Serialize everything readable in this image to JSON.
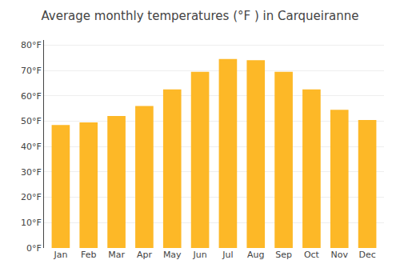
{
  "chart_data": {
    "type": "bar",
    "title": "Average monthly temperatures (°F ) in Carqueiranne",
    "categories": [
      "Jan",
      "Feb",
      "Mar",
      "Apr",
      "May",
      "Jun",
      "Jul",
      "Aug",
      "Sep",
      "Oct",
      "Nov",
      "Dec"
    ],
    "values": [
      48.5,
      49.5,
      52,
      56,
      62.5,
      69.5,
      74.5,
      74,
      69.5,
      62.5,
      54.5,
      50.5
    ],
    "color": "#FDB827",
    "ylim": [
      0,
      82
    ],
    "yticks": [
      {
        "value": 0,
        "label": "0°F"
      },
      {
        "value": 10,
        "label": "10°F"
      },
      {
        "value": 20,
        "label": "20°F"
      },
      {
        "value": 30,
        "label": "30°F"
      },
      {
        "value": 40,
        "label": "40°F"
      },
      {
        "value": 50,
        "label": "50°F"
      },
      {
        "value": 60,
        "label": "60°F"
      },
      {
        "value": 70,
        "label": "70°F"
      },
      {
        "value": 80,
        "label": "80°F"
      }
    ],
    "grid": true
  }
}
